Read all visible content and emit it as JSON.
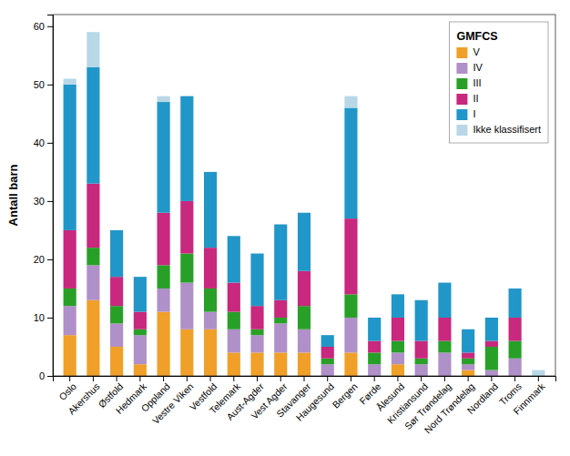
{
  "chart_data": {
    "type": "bar",
    "stacked": true,
    "ylabel": "Antall barn",
    "legend_title": "GMFCS",
    "legend": "upper right",
    "grid": false,
    "categories": [
      "Oslo",
      "Akershus",
      "Østfold",
      "Hedmark",
      "Oppland",
      "Vestre Viken",
      "Vestfold",
      "Telemark",
      "Aust-Agder",
      "Vest Agder",
      "Stavanger",
      "Haugesund",
      "Bergen",
      "Førde",
      "Ålesund",
      "Kristiansund",
      "Sør Trøndelag",
      "Nord Trøndelag",
      "Nordland",
      "Troms",
      "Finnmark"
    ],
    "series": [
      {
        "name": "V",
        "color": "#F0A028",
        "values": [
          7,
          13,
          5,
          2,
          11,
          8,
          8,
          4,
          4,
          4,
          4,
          0,
          4,
          0,
          2,
          0,
          0,
          1,
          0,
          0,
          0
        ]
      },
      {
        "name": "IV",
        "color": "#B090C8",
        "values": [
          5,
          6,
          4,
          5,
          4,
          8,
          3,
          4,
          3,
          5,
          4,
          2,
          6,
          2,
          2,
          2,
          4,
          1,
          1,
          3,
          0
        ]
      },
      {
        "name": "III",
        "color": "#28A028",
        "values": [
          3,
          3,
          3,
          1,
          4,
          5,
          4,
          3,
          1,
          1,
          4,
          1,
          4,
          2,
          2,
          1,
          2,
          1,
          4,
          3,
          0
        ]
      },
      {
        "name": "II",
        "color": "#C8287D",
        "values": [
          10,
          11,
          5,
          3,
          9,
          9,
          7,
          5,
          4,
          3,
          6,
          2,
          13,
          2,
          4,
          3,
          4,
          1,
          1,
          4,
          0
        ]
      },
      {
        "name": "I",
        "color": "#2196C8",
        "values": [
          25,
          20,
          8,
          6,
          19,
          18,
          13,
          8,
          9,
          13,
          10,
          2,
          19,
          4,
          4,
          7,
          6,
          4,
          4,
          5,
          0
        ]
      },
      {
        "name": "Ikke klassifisert",
        "color": "#B8D8E8",
        "values": [
          1,
          6,
          0,
          0,
          1,
          0,
          0,
          0,
          0,
          0,
          0,
          0,
          2,
          0,
          0,
          0,
          0,
          0,
          0,
          0,
          1
        ]
      }
    ],
    "ylim": [
      0,
      62
    ],
    "yticks": [
      0,
      10,
      20,
      30,
      40,
      50,
      60
    ]
  }
}
